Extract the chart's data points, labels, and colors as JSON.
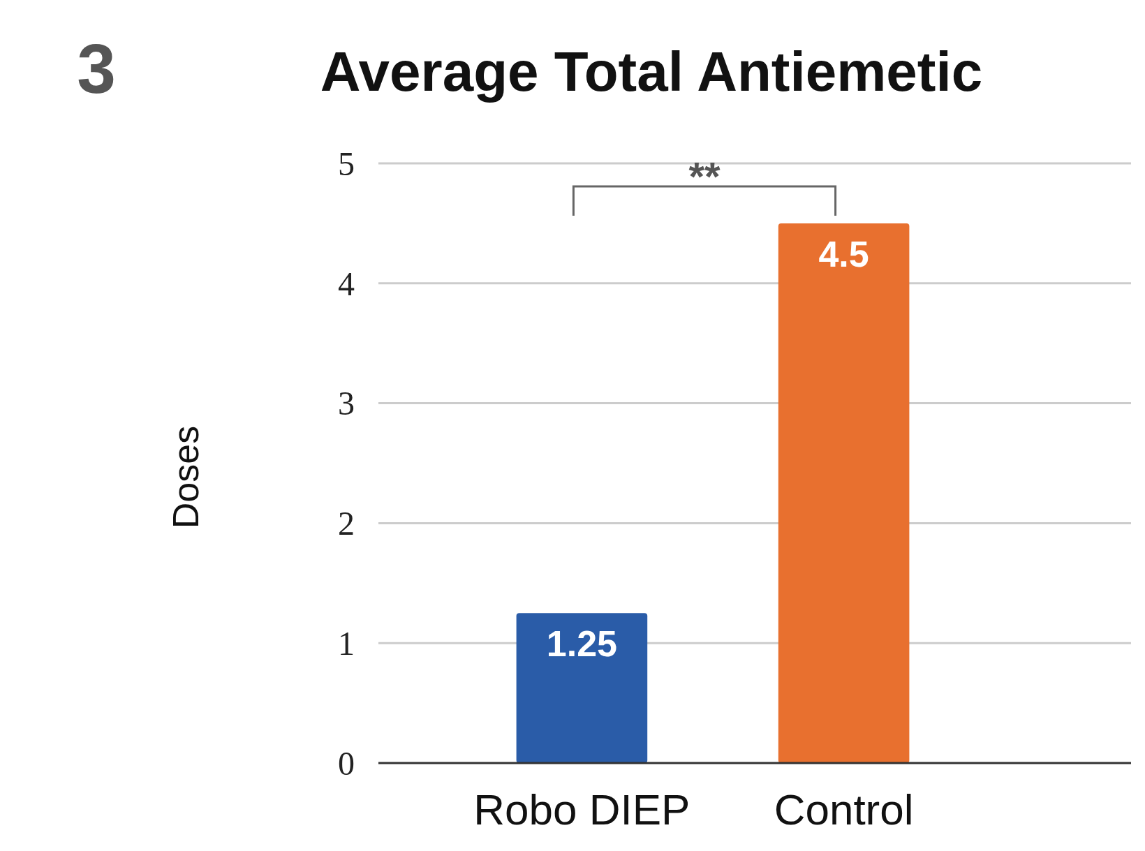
{
  "chart_data": {
    "type": "bar",
    "title": "Average Total Antiemetic",
    "ylabel": "Doses",
    "categories": [
      "Robo DIEP",
      "Control"
    ],
    "values": [
      1.25,
      4.5
    ],
    "colors": [
      "#2a5ca8",
      "#e8702f"
    ],
    "ylim": [
      0,
      5
    ],
    "yticks": [
      0,
      1,
      2,
      3,
      4,
      5
    ],
    "grid": "y",
    "data_labels": true,
    "annotations": [
      "3",
      "**"
    ]
  }
}
